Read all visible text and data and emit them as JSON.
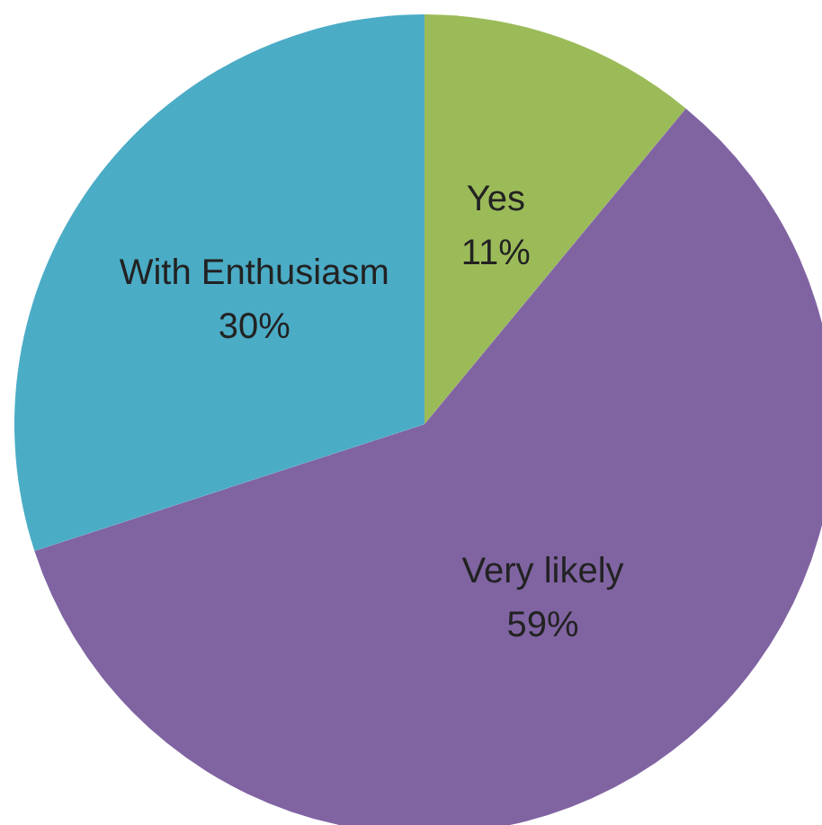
{
  "chart_data": {
    "type": "pie",
    "categories": [
      "Yes",
      "Very likely",
      "With Enthusiasm"
    ],
    "values": [
      11,
      59,
      30
    ],
    "value_labels": [
      "11%",
      "59%",
      "30%"
    ],
    "colors": [
      "#9bbb59",
      "#8064a2",
      "#4bacc6"
    ],
    "legend": false
  }
}
